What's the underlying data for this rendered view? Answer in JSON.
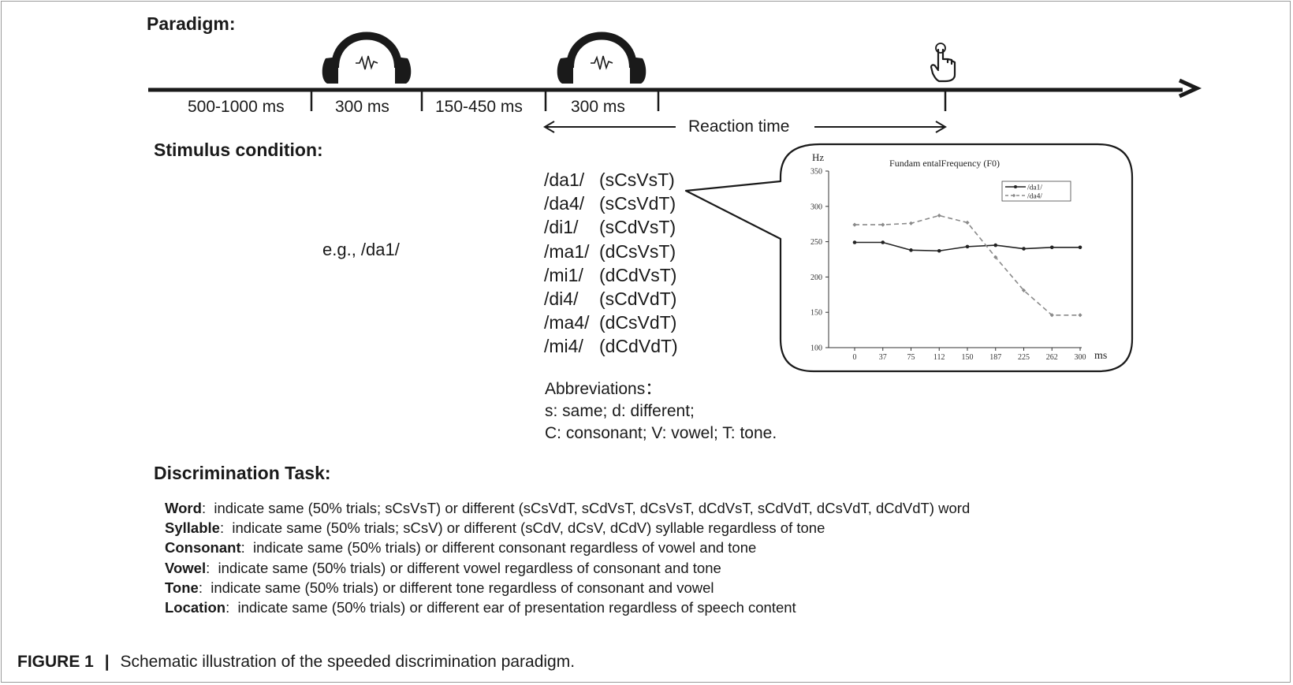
{
  "paradigm": {
    "heading": "Paradigm:",
    "segments": [
      "500-1000 ms",
      "300 ms",
      "150-450 ms",
      "300 ms"
    ],
    "reaction_label": "Reaction time",
    "icons": [
      "headphones-icon",
      "headphones-icon",
      "pointing-hand-icon"
    ]
  },
  "stimulus": {
    "heading": "Stimulus condition:",
    "example": "e.g., /da1/",
    "items": [
      {
        "syllable": "/da1/",
        "code": "(sCsVsT)"
      },
      {
        "syllable": "/da4/",
        "code": "(sCsVdT)"
      },
      {
        "syllable": "/di1/",
        "code": "(sCdVsT)"
      },
      {
        "syllable": "/ma1/",
        "code": "(dCsVsT)"
      },
      {
        "syllable": "/mi1/",
        "code": "(dCdVsT)"
      },
      {
        "syllable": "/di4/",
        "code": "(sCdVdT)"
      },
      {
        "syllable": "/ma4/",
        "code": "(dCsVdT)"
      },
      {
        "syllable": "/mi4/",
        "code": "(dCdVdT)"
      }
    ],
    "abbreviations": {
      "title": "Abbreviations：",
      "line1": "s: same; d: different;",
      "line2": "C: consonant; V: vowel; T: tone."
    }
  },
  "chart_data": {
    "type": "line",
    "title": "Fundam entalFrequency (F0)",
    "ylabel": "Hz",
    "xlabel": "ms",
    "x": [
      0,
      37,
      75,
      112,
      150,
      187,
      225,
      262,
      300
    ],
    "ylim": [
      100,
      350
    ],
    "yticks": [
      100,
      150,
      200,
      250,
      300,
      350
    ],
    "series": [
      {
        "name": "/da1/",
        "values": [
          249,
          249,
          238,
          237,
          243,
          245,
          240,
          242,
          242
        ],
        "style": "solid",
        "color": "#222222"
      },
      {
        "name": "/da4/",
        "values": [
          274,
          274,
          276,
          287,
          277,
          228,
          181,
          146,
          146
        ],
        "style": "dashed",
        "color": "#8a8a8a"
      }
    ],
    "legend": "top-right",
    "grid": false
  },
  "task": {
    "heading": "Discrimination Task:",
    "items": [
      {
        "label": "Word",
        "text": ":  indicate same (50% trials; sCsVsT) or different (sCsVdT, sCdVsT, dCsVsT, dCdVsT, sCdVdT, dCsVdT, dCdVdT) word"
      },
      {
        "label": "Syllable",
        "text": ":  indicate same (50% trials; sCsV) or different (sCdV, dCsV, dCdV) syllable regardless of tone"
      },
      {
        "label": "Consonant",
        "text": ":  indicate same (50% trials) or different consonant regardless of vowel and tone"
      },
      {
        "label": "Vowel",
        "text": ":  indicate same (50% trials) or different vowel regardless of consonant and tone"
      },
      {
        "label": "Tone",
        "text": ":  indicate same (50% trials) or different tone regardless of consonant and vowel"
      },
      {
        "label": "Location",
        "text": ":  indicate same (50% trials) or different ear of presentation regardless of speech content"
      }
    ]
  },
  "caption": {
    "label": "FIGURE 1",
    "separator": "|",
    "text": "Schematic illustration of the speeded discrimination paradigm."
  }
}
